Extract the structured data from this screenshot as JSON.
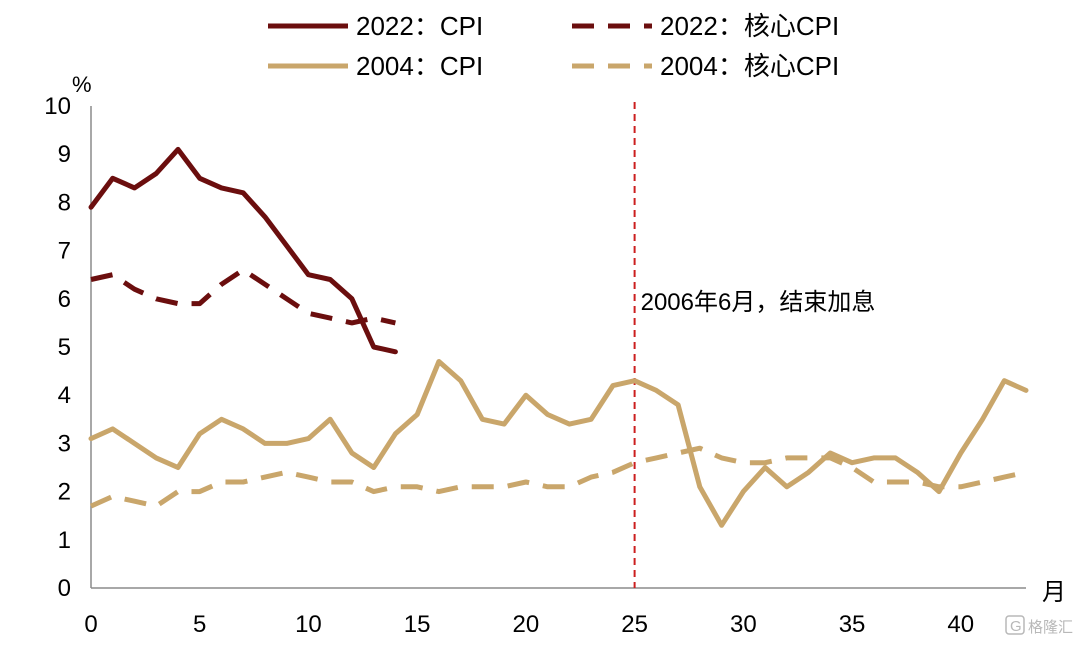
{
  "chart_data": {
    "type": "line",
    "title": "",
    "ylabel": "%",
    "xlabel": "月",
    "xlim": [
      0,
      43
    ],
    "ylim": [
      0,
      10
    ],
    "x_ticks": [
      0,
      5,
      10,
      15,
      20,
      25,
      30,
      35,
      40
    ],
    "y_ticks": [
      0,
      1,
      2,
      3,
      4,
      5,
      6,
      7,
      8,
      9,
      10
    ],
    "grid": false,
    "legend_position": "top",
    "series": [
      {
        "name": "2022：CPI",
        "color": "#6b0e0e",
        "style": "solid",
        "x": [
          0,
          1,
          2,
          3,
          4,
          5,
          6,
          7,
          8,
          9,
          10,
          11,
          12,
          13,
          14
        ],
        "values": [
          7.9,
          8.5,
          8.3,
          8.6,
          9.1,
          8.5,
          8.3,
          8.2,
          7.7,
          7.1,
          6.5,
          6.4,
          6.0,
          5.0,
          4.9
        ]
      },
      {
        "name": "2022：核心CPI",
        "color": "#6b0e0e",
        "style": "dashed",
        "x": [
          0,
          1,
          2,
          3,
          4,
          5,
          6,
          7,
          8,
          9,
          10,
          11,
          12,
          13,
          14
        ],
        "values": [
          6.4,
          6.5,
          6.2,
          6.0,
          5.9,
          5.9,
          6.3,
          6.6,
          6.3,
          6.0,
          5.7,
          5.6,
          5.5,
          5.6,
          5.5
        ]
      },
      {
        "name": "2004：CPI",
        "color": "#c9a66b",
        "style": "solid",
        "x": [
          0,
          1,
          2,
          3,
          4,
          5,
          6,
          7,
          8,
          9,
          10,
          11,
          12,
          13,
          14,
          15,
          16,
          17,
          18,
          19,
          20,
          21,
          22,
          23,
          24,
          25,
          26,
          27,
          28,
          29,
          30,
          31,
          32,
          33,
          34,
          35,
          36,
          37,
          38,
          39,
          40,
          41,
          42,
          43
        ],
        "values": [
          3.1,
          3.3,
          3.0,
          2.7,
          2.5,
          3.2,
          3.5,
          3.3,
          3.0,
          3.0,
          3.1,
          3.5,
          2.8,
          2.5,
          3.2,
          3.6,
          4.7,
          4.3,
          3.5,
          3.4,
          4.0,
          3.6,
          3.4,
          3.5,
          4.2,
          4.3,
          4.1,
          3.8,
          2.1,
          1.3,
          2.0,
          2.5,
          2.1,
          2.4,
          2.8,
          2.6,
          2.7,
          2.7,
          2.4,
          2.0,
          2.8,
          3.5,
          4.3,
          4.1
        ]
      },
      {
        "name": "2004：核心CPI",
        "color": "#c9a66b",
        "style": "dashed",
        "x": [
          0,
          1,
          2,
          3,
          4,
          5,
          6,
          7,
          8,
          9,
          10,
          11,
          12,
          13,
          14,
          15,
          16,
          17,
          18,
          19,
          20,
          21,
          22,
          23,
          24,
          25,
          26,
          27,
          28,
          29,
          30,
          31,
          32,
          33,
          34,
          35,
          36,
          37,
          38,
          39,
          40,
          41,
          42,
          43
        ],
        "values": [
          1.7,
          1.9,
          1.8,
          1.7,
          2.0,
          2.0,
          2.2,
          2.2,
          2.3,
          2.4,
          2.3,
          2.2,
          2.2,
          2.0,
          2.1,
          2.1,
          2.0,
          2.1,
          2.1,
          2.1,
          2.2,
          2.1,
          2.1,
          2.3,
          2.4,
          2.6,
          2.7,
          2.8,
          2.9,
          2.7,
          2.6,
          2.6,
          2.7,
          2.7,
          2.7,
          2.5,
          2.2,
          2.2,
          2.2,
          2.1,
          2.1,
          2.2,
          2.3,
          2.4
        ]
      }
    ],
    "annotations": [
      {
        "x": 25,
        "text": "2006年6月，结束加息",
        "color": "#cc1f1f",
        "style": "dashed-vertical"
      }
    ]
  },
  "watermark": "格隆汇"
}
